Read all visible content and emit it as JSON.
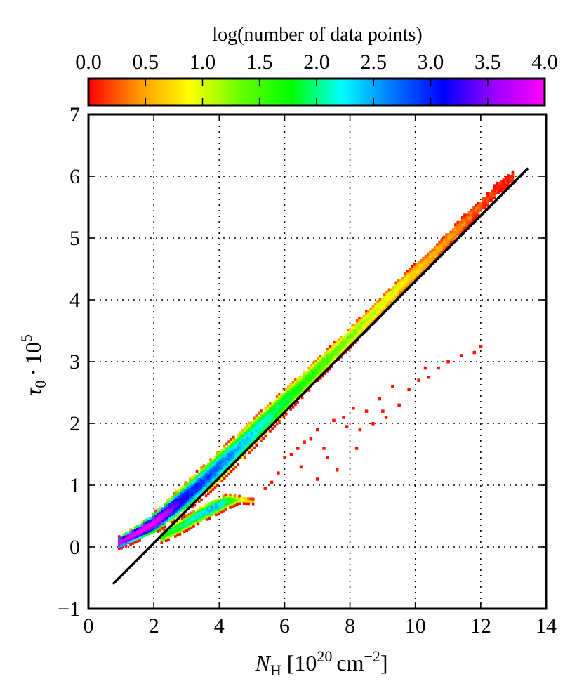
{
  "chart_data": {
    "type": "heatmap",
    "title": "",
    "xlabel_main": "N",
    "xlabel_sub": "H",
    "xlabel_units_open": "[10",
    "xlabel_units_exp1": "20",
    "xlabel_units_mid": "cm",
    "xlabel_units_exp2": "−2",
    "xlabel_units_close": "]",
    "ylabel_main": "τ",
    "ylabel_sub": "0",
    "ylabel_dot": "·",
    "ylabel_base": "10",
    "ylabel_exp": "5",
    "xlim": [
      0,
      14
    ],
    "ylim": [
      -1,
      7
    ],
    "xticks": [
      "0",
      "2",
      "4",
      "6",
      "8",
      "10",
      "12",
      "14"
    ],
    "yticks": [
      "−1",
      "0",
      "1",
      "2",
      "3",
      "4",
      "5",
      "6",
      "7"
    ],
    "grid": true,
    "colorbar": {
      "label": "log(number of data points)",
      "range": [
        0,
        4
      ],
      "ticks": [
        "0.0",
        "0.5",
        "1.0",
        "1.5",
        "2.0",
        "2.5",
        "3.0",
        "3.5",
        "4.0"
      ],
      "colors": [
        "#ff0000",
        "#ff9900",
        "#ffff00",
        "#66ff00",
        "#00ff00",
        "#00ffff",
        "#0077ff",
        "#0000ff",
        "#9900ff",
        "#ff00ff"
      ]
    },
    "fit_line": {
      "x": [
        0.75,
        13.45
      ],
      "y": [
        -0.6,
        6.13
      ]
    },
    "main_band": [
      {
        "x": 0.9,
        "y": 0.05,
        "w": 0.1,
        "log_count": 3.9
      },
      {
        "x": 1.5,
        "y": 0.22,
        "w": 0.14,
        "log_count": 4.0
      },
      {
        "x": 2.0,
        "y": 0.38,
        "w": 0.18,
        "log_count": 4.0
      },
      {
        "x": 2.5,
        "y": 0.6,
        "w": 0.22,
        "log_count": 3.6
      },
      {
        "x": 3.0,
        "y": 0.82,
        "w": 0.25,
        "log_count": 3.1
      },
      {
        "x": 3.5,
        "y": 1.05,
        "w": 0.27,
        "log_count": 2.9
      },
      {
        "x": 4.0,
        "y": 1.3,
        "w": 0.27,
        "log_count": 2.7
      },
      {
        "x": 4.5,
        "y": 1.55,
        "w": 0.26,
        "log_count": 2.5
      },
      {
        "x": 5.0,
        "y": 1.82,
        "w": 0.25,
        "log_count": 2.3
      },
      {
        "x": 5.5,
        "y": 2.08,
        "w": 0.23,
        "log_count": 2.1
      },
      {
        "x": 6.0,
        "y": 2.35,
        "w": 0.22,
        "log_count": 1.9
      },
      {
        "x": 6.5,
        "y": 2.6,
        "w": 0.2,
        "log_count": 1.7
      },
      {
        "x": 7.0,
        "y": 2.87,
        "w": 0.19,
        "log_count": 1.6
      },
      {
        "x": 7.5,
        "y": 3.13,
        "w": 0.18,
        "log_count": 1.4
      },
      {
        "x": 8.0,
        "y": 3.4,
        "w": 0.17,
        "log_count": 1.3
      },
      {
        "x": 8.5,
        "y": 3.66,
        "w": 0.16,
        "log_count": 1.1
      },
      {
        "x": 9.0,
        "y": 3.93,
        "w": 0.15,
        "log_count": 1.0
      },
      {
        "x": 9.5,
        "y": 4.2,
        "w": 0.15,
        "log_count": 0.9
      },
      {
        "x": 10.0,
        "y": 4.45,
        "w": 0.14,
        "log_count": 0.7
      },
      {
        "x": 10.5,
        "y": 4.7,
        "w": 0.14,
        "log_count": 0.6
      },
      {
        "x": 11.0,
        "y": 4.98,
        "w": 0.13,
        "log_count": 0.5
      },
      {
        "x": 11.5,
        "y": 5.25,
        "w": 0.12,
        "log_count": 0.35
      },
      {
        "x": 12.0,
        "y": 5.52,
        "w": 0.11,
        "log_count": 0.25
      },
      {
        "x": 12.5,
        "y": 5.8,
        "w": 0.1,
        "log_count": 0.12
      },
      {
        "x": 13.0,
        "y": 6.0,
        "w": 0.08,
        "log_count": 0.05
      }
    ],
    "lower_branch": [
      {
        "x": 2.2,
        "y": 0.15,
        "w": 0.1,
        "log_count": 1.8
      },
      {
        "x": 2.8,
        "y": 0.32,
        "w": 0.12,
        "log_count": 2.0
      },
      {
        "x": 3.3,
        "y": 0.48,
        "w": 0.13,
        "log_count": 2.2
      },
      {
        "x": 3.8,
        "y": 0.62,
        "w": 0.14,
        "log_count": 2.5
      },
      {
        "x": 4.2,
        "y": 0.72,
        "w": 0.12,
        "log_count": 2.0
      },
      {
        "x": 4.6,
        "y": 0.75,
        "w": 0.06,
        "log_count": 1.1
      },
      {
        "x": 5.0,
        "y": 0.72,
        "w": 0.04,
        "log_count": 0.5
      }
    ],
    "sparse_points": [
      {
        "x": 6.0,
        "y": 1.45
      },
      {
        "x": 6.2,
        "y": 1.5
      },
      {
        "x": 6.4,
        "y": 1.6
      },
      {
        "x": 6.6,
        "y": 1.7
      },
      {
        "x": 6.8,
        "y": 1.75
      },
      {
        "x": 7.0,
        "y": 1.9
      },
      {
        "x": 7.2,
        "y": 1.6
      },
      {
        "x": 7.3,
        "y": 1.45
      },
      {
        "x": 7.5,
        "y": 2.05
      },
      {
        "x": 7.6,
        "y": 1.25
      },
      {
        "x": 7.8,
        "y": 2.1
      },
      {
        "x": 7.9,
        "y": 1.95
      },
      {
        "x": 8.1,
        "y": 2.25
      },
      {
        "x": 8.3,
        "y": 1.9
      },
      {
        "x": 8.5,
        "y": 2.2
      },
      {
        "x": 8.7,
        "y": 2.0
      },
      {
        "x": 8.9,
        "y": 2.4
      },
      {
        "x": 9.1,
        "y": 2.1
      },
      {
        "x": 9.3,
        "y": 2.6
      },
      {
        "x": 9.5,
        "y": 2.3
      },
      {
        "x": 9.8,
        "y": 2.55
      },
      {
        "x": 10.1,
        "y": 2.7
      },
      {
        "x": 10.4,
        "y": 2.75
      },
      {
        "x": 10.7,
        "y": 2.9
      },
      {
        "x": 11.0,
        "y": 3.0
      },
      {
        "x": 11.4,
        "y": 3.1
      },
      {
        "x": 11.8,
        "y": 3.15
      },
      {
        "x": 12.0,
        "y": 3.25
      },
      {
        "x": 5.8,
        "y": 1.2
      },
      {
        "x": 5.6,
        "y": 1.05
      },
      {
        "x": 5.4,
        "y": 0.95
      },
      {
        "x": 6.5,
        "y": 1.3
      },
      {
        "x": 7.0,
        "y": 1.1
      },
      {
        "x": 8.2,
        "y": 1.6
      },
      {
        "x": 9.0,
        "y": 2.2
      },
      {
        "x": 10.3,
        "y": 2.9
      }
    ]
  }
}
